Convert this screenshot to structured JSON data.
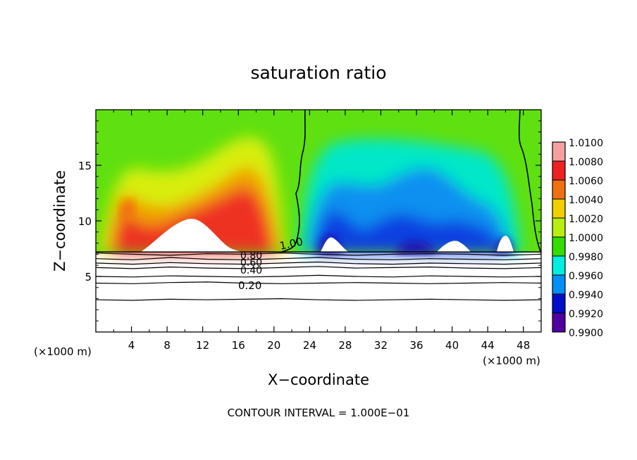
{
  "chart_data": {
    "type": "heatmap",
    "title": "saturation ratio",
    "xlabel": "X−coordinate",
    "ylabel": "Z−coordinate",
    "x_unit_left": "(×1000 m)",
    "x_unit_right": "(×1000 m)",
    "xlim": [
      0,
      50
    ],
    "ylim": [
      0,
      20
    ],
    "x_ticks": [
      4,
      8,
      12,
      16,
      20,
      24,
      28,
      32,
      36,
      40,
      44,
      48
    ],
    "y_ticks": [
      5,
      10,
      15
    ],
    "colorbar_levels": [
      "1.0100",
      "1.0080",
      "1.0060",
      "1.0040",
      "1.0020",
      "1.0000",
      "0.9980",
      "0.9960",
      "0.9940",
      "0.9920",
      "0.9900"
    ],
    "colorbar_colors": [
      "#f4a0a0",
      "#ee2222",
      "#f07010",
      "#f0d000",
      "#b8ee10",
      "#33dd00",
      "#00eedd",
      "#0090f8",
      "#0010c8",
      "#5000a0"
    ],
    "contour_interval": "CONTOUR INTERVAL = 1.000E−01",
    "contour_labels": [
      "1.00",
      "0.80",
      "0.60",
      "0.40",
      "0.20"
    ],
    "contour_lines": [
      {
        "z": [
          7.1,
          7.0,
          6.9,
          7.05,
          7.0,
          7.1,
          7.0,
          6.9,
          7.0,
          7.05,
          7.0,
          6.9,
          7.0
        ]
      },
      {
        "z": [
          6.6,
          6.5,
          6.7,
          6.55,
          6.5,
          6.6,
          6.7,
          6.55,
          6.5,
          6.6,
          6.55,
          6.5,
          6.6
        ]
      },
      {
        "z": [
          6.2,
          6.1,
          6.25,
          6.15,
          6.1,
          6.2,
          6.3,
          6.15,
          6.1,
          6.2,
          6.15,
          6.1,
          6.2
        ]
      },
      {
        "z": [
          5.8,
          5.7,
          5.85,
          5.75,
          5.7,
          5.8,
          5.9,
          5.75,
          5.8,
          5.85,
          5.75,
          5.7,
          5.8
        ]
      },
      {
        "z": [
          5.0,
          4.95,
          5.05,
          5.0,
          4.95,
          5.0,
          5.1,
          5.0,
          4.95,
          5.05,
          5.0,
          4.95,
          5.0
        ]
      },
      {
        "z": [
          4.4,
          4.35,
          4.45,
          4.5,
          4.4,
          4.35,
          4.4,
          4.45,
          4.4,
          4.35,
          4.4,
          4.45,
          4.4
        ]
      },
      {
        "z": [
          2.9,
          2.85,
          2.95,
          2.9,
          2.95,
          3.0,
          2.9,
          2.85,
          2.9,
          2.95,
          2.9,
          2.85,
          2.9
        ]
      }
    ],
    "grid": false
  }
}
